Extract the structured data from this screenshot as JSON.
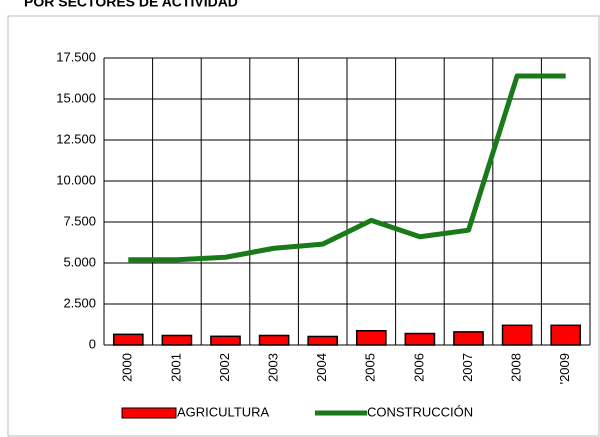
{
  "chart_data": {
    "type": "bar",
    "title": "POR SECTORES DE ACTIVIDAD",
    "categories": [
      "2000",
      "2001",
      "2002",
      "2003",
      "2004",
      "2005",
      "2006",
      "2007",
      "2008",
      "'2009"
    ],
    "series": [
      {
        "name": "AGRICULTURA",
        "type": "bar",
        "color": "#ff0000",
        "values": [
          650,
          580,
          530,
          580,
          520,
          870,
          700,
          800,
          1200,
          1200
        ]
      },
      {
        "name": "CONSTRUCCIÓN",
        "type": "line",
        "color": "#1a7a1a",
        "values": [
          5200,
          5200,
          5350,
          5900,
          6150,
          7600,
          6600,
          7000,
          16400,
          16400
        ]
      }
    ],
    "ylim": [
      0,
      17500
    ],
    "yticks": [
      {
        "value": 0,
        "label": "0"
      },
      {
        "value": 2500,
        "label": "2.500"
      },
      {
        "value": 5000,
        "label": "5.000"
      },
      {
        "value": 7500,
        "label": "7.500"
      },
      {
        "value": 10000,
        "label": "10.000"
      },
      {
        "value": 12500,
        "label": "12.500"
      },
      {
        "value": 15000,
        "label": "15.000"
      },
      {
        "value": 17500,
        "label": "17.500"
      }
    ],
    "grid": true
  }
}
